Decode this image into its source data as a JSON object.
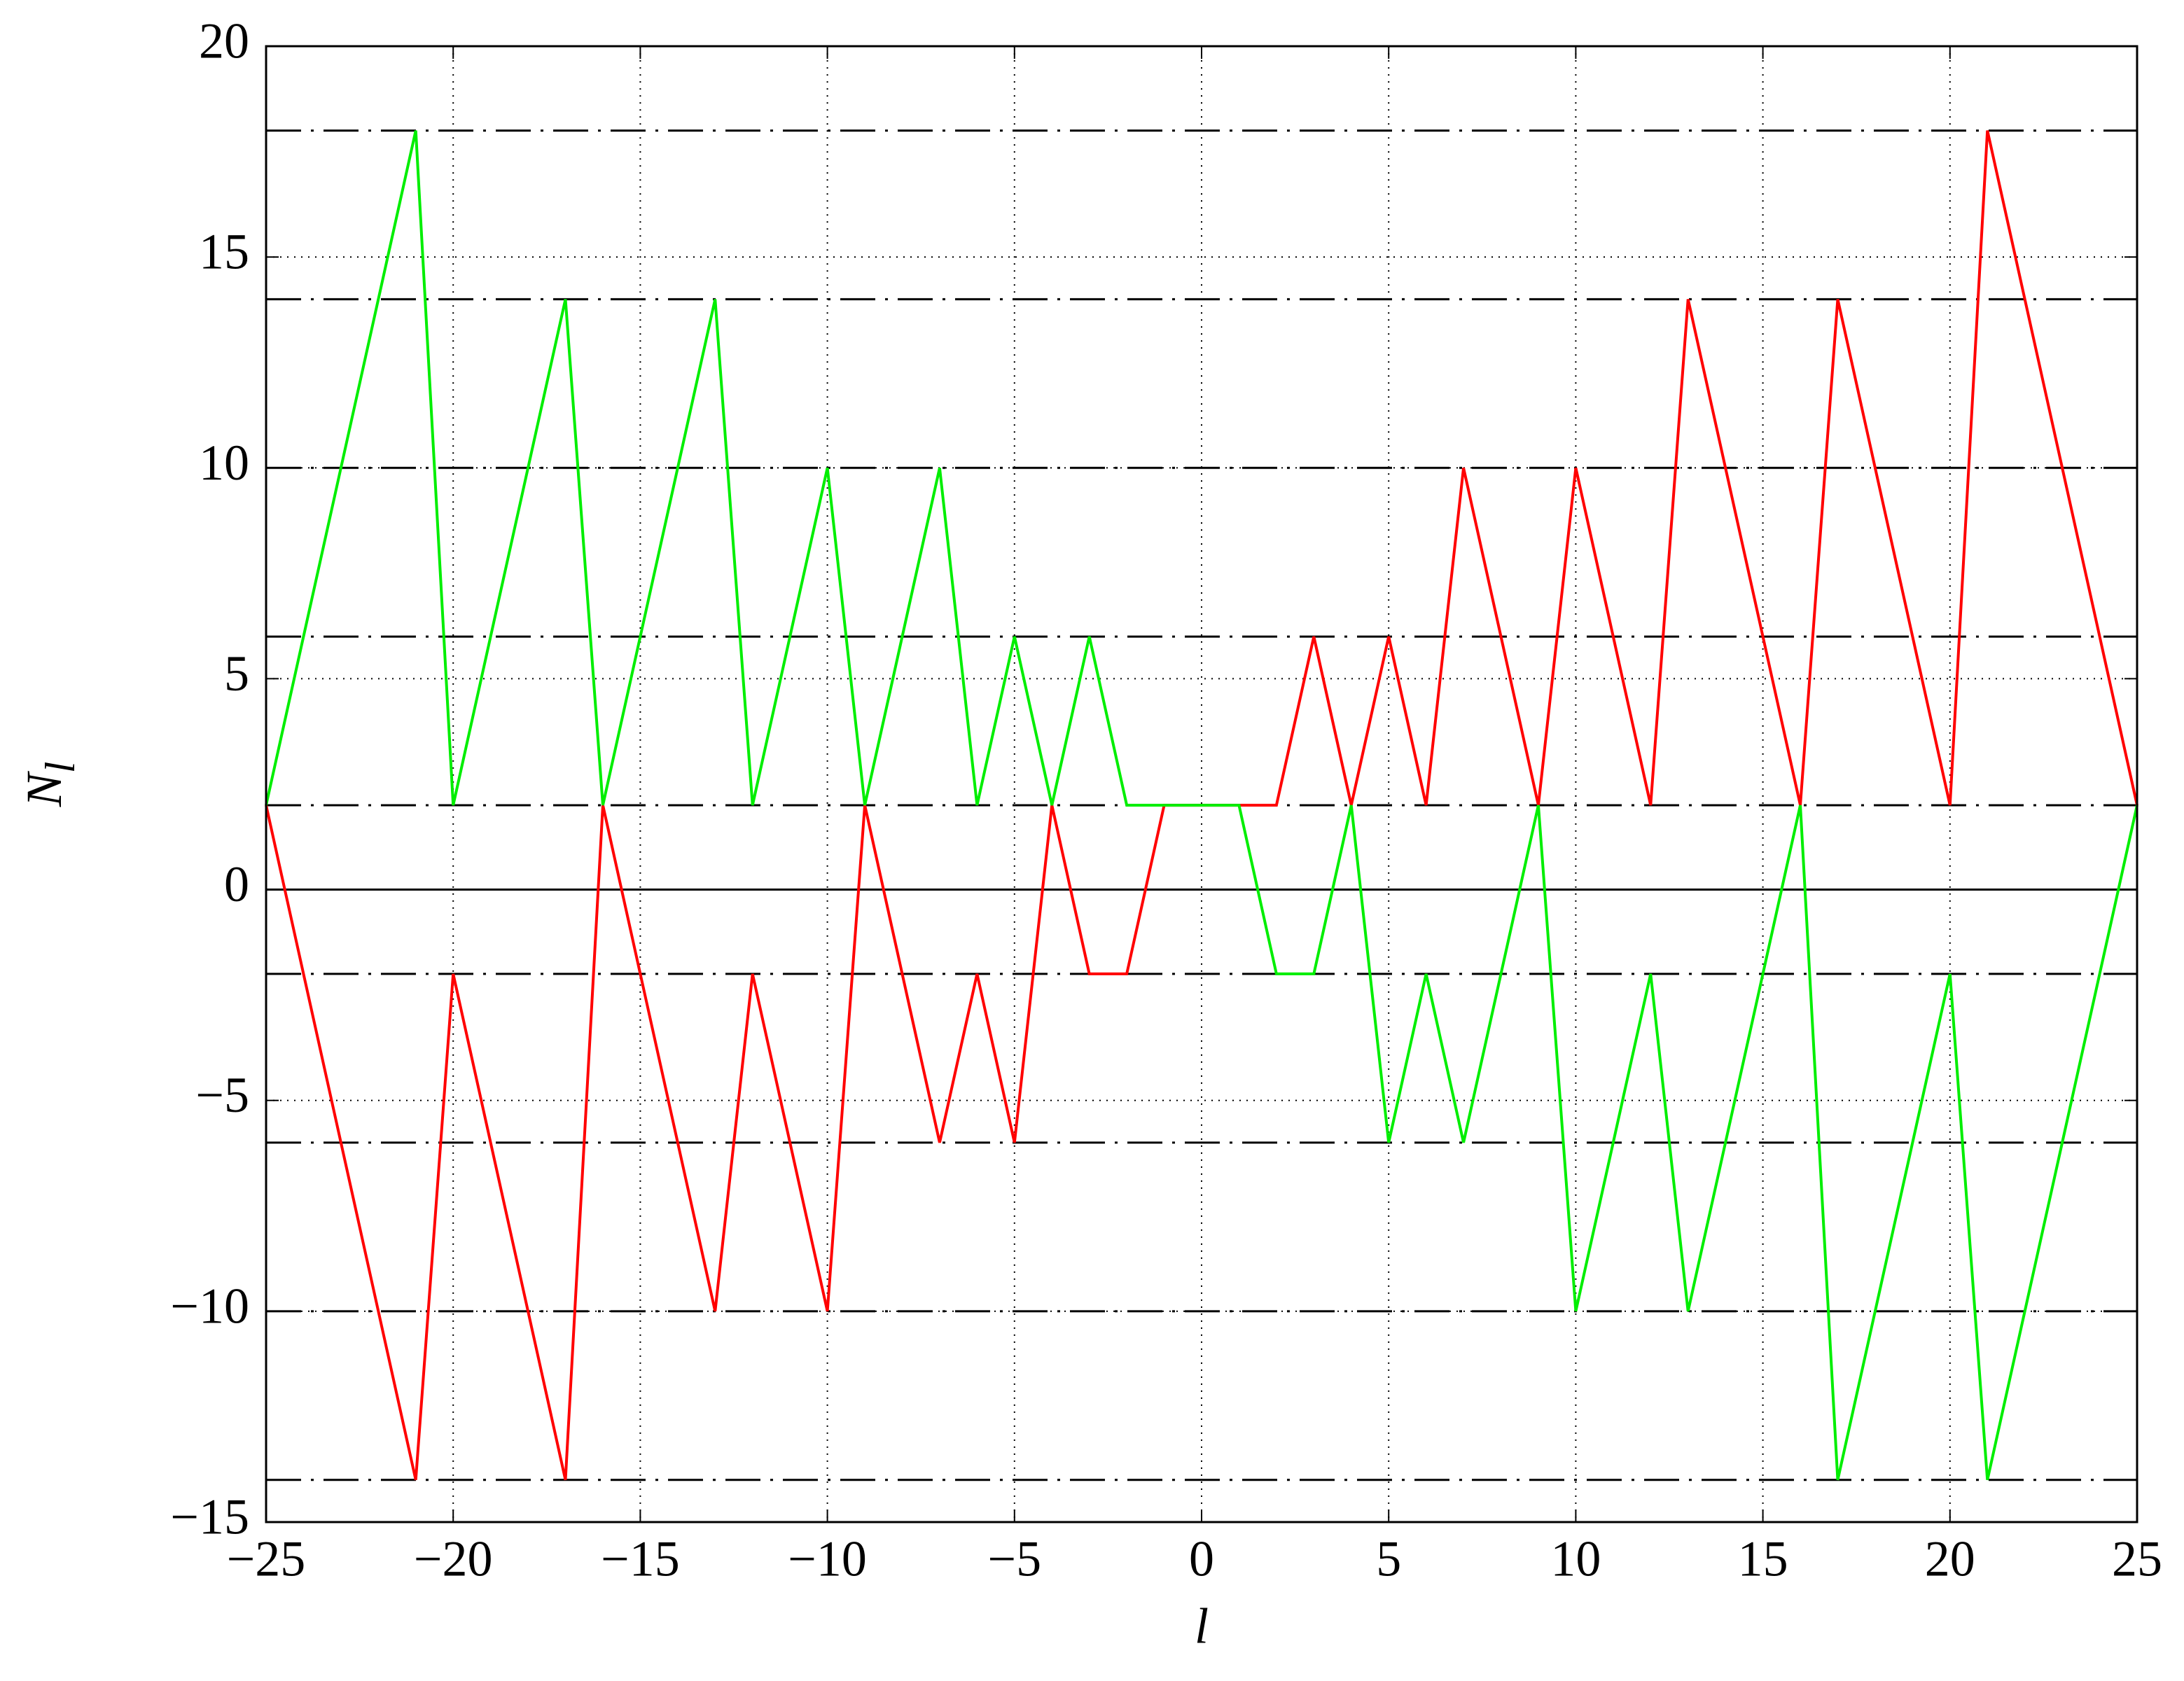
{
  "chart_data": {
    "type": "line",
    "xlabel": "l",
    "ylabel": {
      "text": "N",
      "subscript": "l"
    },
    "xlim": [
      -25,
      25
    ],
    "ylim": [
      -15,
      20
    ],
    "xticks": [
      {
        "value": -25,
        "label": "−25"
      },
      {
        "value": -20,
        "label": "−20"
      },
      {
        "value": -15,
        "label": "−15"
      },
      {
        "value": -10,
        "label": "−10"
      },
      {
        "value": -5,
        "label": "−5"
      },
      0,
      5,
      10,
      15,
      20,
      25
    ],
    "yticks": [
      {
        "value": -15,
        "label": "−15"
      },
      {
        "value": -10,
        "label": "−10"
      },
      {
        "value": -5,
        "label": "−5"
      },
      0,
      5,
      10,
      15,
      20
    ],
    "grid": true,
    "baseline": 0,
    "hlines": [
      18,
      14,
      10,
      6,
      2,
      -2,
      -6,
      -10,
      -14
    ],
    "series": [
      {
        "color": "#ff0000",
        "x": [
          -25,
          -21,
          -20,
          -17,
          -16,
          -13,
          -12,
          -10,
          -9,
          -7,
          -6,
          -5,
          -4,
          -3,
          -2,
          -1,
          0,
          2,
          3,
          4,
          5,
          6,
          7,
          9,
          10,
          12,
          13,
          16,
          17,
          20,
          21,
          25
        ],
        "values": [
          2,
          -14,
          -2,
          -14,
          2,
          -10,
          -2,
          -10,
          2,
          -6,
          -2,
          -6,
          2,
          -2,
          -2,
          2,
          2,
          2,
          6,
          2,
          6,
          2,
          10,
          2,
          10,
          2,
          14,
          2,
          14,
          2,
          18,
          2
        ]
      },
      {
        "color": "#00ee00",
        "x": [
          -25,
          -21,
          -20,
          -17,
          -16,
          -13,
          -12,
          -10,
          -9,
          -7,
          -6,
          -5,
          -4,
          -3,
          -2,
          0,
          1,
          2,
          3,
          4,
          5,
          6,
          7,
          9,
          10,
          12,
          13,
          16,
          17,
          20,
          21,
          25
        ],
        "values": [
          2,
          18,
          2,
          14,
          2,
          14,
          2,
          10,
          2,
          10,
          2,
          6,
          2,
          6,
          2,
          2,
          2,
          -2,
          -2,
          2,
          -6,
          -2,
          -6,
          2,
          -10,
          -2,
          -10,
          2,
          -14,
          -2,
          -14,
          2
        ]
      }
    ]
  }
}
